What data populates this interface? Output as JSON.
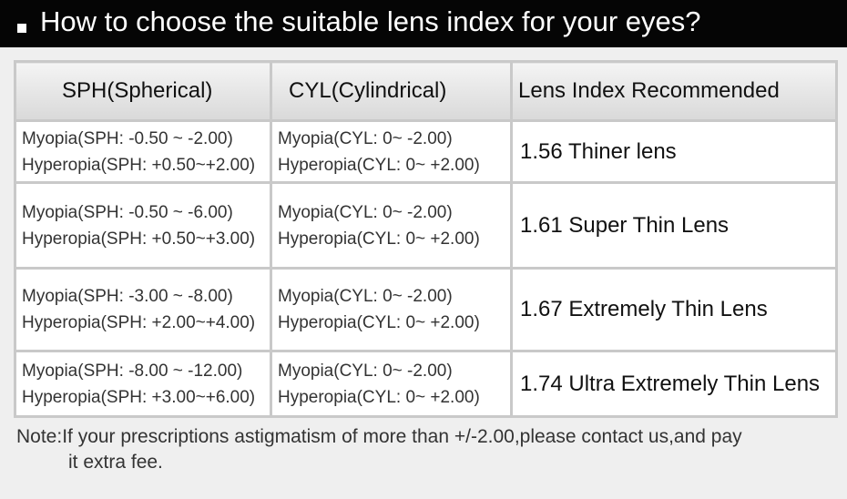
{
  "header": {
    "title": "How to choose the suitable lens index for your eyes?"
  },
  "table": {
    "columns": [
      "SPH(Spherical)",
      "CYL(Cylindrical)",
      "Lens Index Recommended"
    ],
    "rows": [
      [
        [
          "Myopia(SPH: -0.50 ~ -2.00)",
          "Hyperopia(SPH: +0.50~+2.00)"
        ],
        [
          "Myopia(CYL: 0~ -2.00)",
          "Hyperopia(CYL: 0~ +2.00)"
        ],
        "1.56 Thiner lens"
      ],
      [
        [
          "Myopia(SPH: -0.50 ~ -6.00)",
          "Hyperopia(SPH: +0.50~+3.00)"
        ],
        [
          "Myopia(CYL: 0~ -2.00)",
          "Hyperopia(CYL: 0~ +2.00)"
        ],
        "1.61 Super Thin Lens"
      ],
      [
        [
          "Myopia(SPH:  -3.00 ~ -8.00)",
          "Hyperopia(SPH: +2.00~+4.00)"
        ],
        [
          "Myopia(CYL: 0~ -2.00)",
          "Hyperopia(CYL: 0~ +2.00)"
        ],
        "1.67 Extremely Thin Lens"
      ],
      [
        [
          "Myopia(SPH:  -8.00 ~ -12.00)",
          "Hyperopia(SPH: +3.00~+6.00)"
        ],
        [
          "Myopia(CYL: 0~ -2.00)",
          "Hyperopia(CYL: 0~ +2.00)"
        ],
        "1.74 Ultra Extremely Thin Lens"
      ]
    ]
  },
  "note": [
    "Note:If your prescriptions astigmatism of more than +/-2.00,please contact us,and pay",
    "it extra fee."
  ]
}
